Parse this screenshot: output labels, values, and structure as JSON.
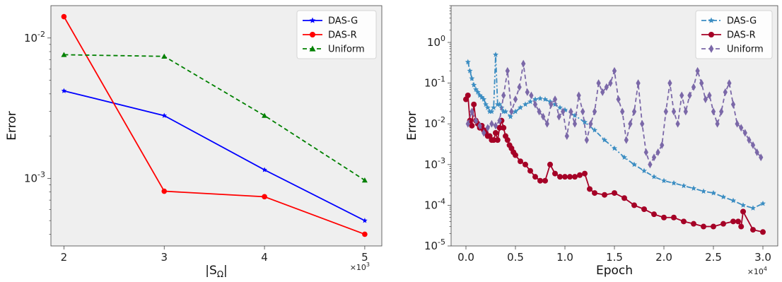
{
  "chart_data": [
    {
      "type": "line",
      "xlabel": "|S",
      "xlabel_sub": "Ω",
      "xlabel_end": "|",
      "ylabel": "Error",
      "x_multiplier": "×10",
      "x_multiplier_exp": "3",
      "yscale": "log",
      "xlim": [
        1.87,
        5.17
      ],
      "ylim": [
        0.00033,
        0.017
      ],
      "x_ticks": [
        2,
        3,
        4,
        5
      ],
      "x_tick_labels": [
        "2",
        "3",
        "4",
        "5"
      ],
      "y_ticks": [
        0.01,
        0.001
      ],
      "y_tick_labels": [
        {
          "base": "10",
          "exp": "-2"
        },
        {
          "base": "10",
          "exp": "-3"
        }
      ],
      "legend_position": "top-right",
      "grid": false,
      "series": [
        {
          "name": "DAS-G",
          "color": "#0000ff",
          "marker": "star",
          "dash": "solid",
          "x": [
            2,
            3,
            4,
            5
          ],
          "y": [
            0.0042,
            0.0028,
            0.00115,
            0.0005
          ]
        },
        {
          "name": "DAS-R",
          "color": "#ff0000",
          "marker": "circle",
          "dash": "solid",
          "x": [
            2,
            3,
            4,
            5
          ],
          "y": [
            0.0142,
            0.00081,
            0.00074,
            0.0004
          ]
        },
        {
          "name": "Uniform",
          "color": "#008000",
          "marker": "triangle",
          "dash": "dashed",
          "x": [
            2,
            3,
            4,
            5
          ],
          "y": [
            0.0076,
            0.0074,
            0.0028,
            0.00097
          ]
        }
      ]
    },
    {
      "type": "line",
      "xlabel": "Epoch",
      "ylabel": "Error",
      "x_multiplier": "×10",
      "x_multiplier_exp": "4",
      "yscale": "log",
      "xlim": [
        -0.15,
        3.15
      ],
      "ylim": [
        1e-05,
        8
      ],
      "x_ticks": [
        0.0,
        0.5,
        1.0,
        1.5,
        2.0,
        2.5,
        3.0
      ],
      "x_tick_labels": [
        "0.0",
        "0.5",
        "1.0",
        "1.5",
        "2.0",
        "2.5",
        "3.0"
      ],
      "y_ticks": [
        1,
        0.1,
        0.01,
        0.001,
        0.0001,
        1e-05
      ],
      "y_tick_labels": [
        {
          "base": "10",
          "exp": "0"
        },
        {
          "base": "10",
          "exp": "-1"
        },
        {
          "base": "10",
          "exp": "-2"
        },
        {
          "base": "10",
          "exp": "-3"
        },
        {
          "base": "10",
          "exp": "-4"
        },
        {
          "base": "10",
          "exp": "-5"
        }
      ],
      "legend_position": "top-right",
      "grid": false,
      "series": [
        {
          "name": "DAS-G",
          "color": "#3b8dc2",
          "marker": "star",
          "dash": "dashdot",
          "x": [
            0.02,
            0.04,
            0.06,
            0.08,
            0.1,
            0.12,
            0.14,
            0.16,
            0.18,
            0.2,
            0.22,
            0.24,
            0.26,
            0.28,
            0.3,
            0.32,
            0.34,
            0.36,
            0.38,
            0.4,
            0.45,
            0.5,
            0.55,
            0.6,
            0.65,
            0.7,
            0.75,
            0.8,
            0.85,
            0.9,
            0.95,
            1.0,
            1.1,
            1.2,
            1.3,
            1.4,
            1.5,
            1.6,
            1.7,
            1.8,
            1.9,
            2.0,
            2.1,
            2.2,
            2.3,
            2.4,
            2.5,
            2.6,
            2.7,
            2.8,
            2.9,
            3.0
          ],
          "y": [
            0.33,
            0.2,
            0.13,
            0.09,
            0.07,
            0.06,
            0.05,
            0.045,
            0.04,
            0.03,
            0.025,
            0.02,
            0.02,
            0.025,
            0.5,
            0.03,
            0.03,
            0.025,
            0.02,
            0.02,
            0.015,
            0.02,
            0.025,
            0.03,
            0.035,
            0.04,
            0.042,
            0.04,
            0.035,
            0.03,
            0.025,
            0.022,
            0.016,
            0.011,
            0.007,
            0.004,
            0.0025,
            0.0015,
            0.001,
            0.0007,
            0.0005,
            0.0004,
            0.00035,
            0.0003,
            0.00026,
            0.00022,
            0.0002,
            0.00016,
            0.00013,
            0.0001,
            8.5e-05,
            0.00011
          ]
        },
        {
          "name": "DAS-R",
          "color": "#a50026",
          "marker": "circle",
          "dash": "solid",
          "x": [
            0.0,
            0.02,
            0.04,
            0.06,
            0.08,
            0.1,
            0.12,
            0.14,
            0.16,
            0.18,
            0.2,
            0.22,
            0.24,
            0.26,
            0.28,
            0.3,
            0.32,
            0.34,
            0.36,
            0.38,
            0.4,
            0.42,
            0.44,
            0.46,
            0.48,
            0.5,
            0.55,
            0.6,
            0.65,
            0.7,
            0.75,
            0.8,
            0.85,
            0.9,
            0.95,
            1.0,
            1.05,
            1.1,
            1.15,
            1.2,
            1.25,
            1.3,
            1.4,
            1.5,
            1.6,
            1.7,
            1.8,
            1.9,
            2.0,
            2.1,
            2.2,
            2.3,
            2.4,
            2.5,
            2.6,
            2.7,
            2.75,
            2.78,
            2.8,
            2.9,
            3.0
          ],
          "y": [
            0.04,
            0.05,
            0.012,
            0.009,
            0.03,
            0.012,
            0.01,
            0.008,
            0.009,
            0.007,
            0.006,
            0.005,
            0.005,
            0.004,
            0.004,
            0.006,
            0.004,
            0.008,
            0.012,
            0.008,
            0.005,
            0.004,
            0.003,
            0.0025,
            0.002,
            0.0017,
            0.0012,
            0.001,
            0.0007,
            0.0005,
            0.0004,
            0.0004,
            0.001,
            0.0006,
            0.0005,
            0.0005,
            0.0005,
            0.0005,
            0.00055,
            0.0006,
            0.00025,
            0.0002,
            0.00018,
            0.0002,
            0.00015,
            0.0001,
            8e-05,
            6e-05,
            5e-05,
            5e-05,
            4e-05,
            3.5e-05,
            3e-05,
            3e-05,
            3.5e-05,
            4e-05,
            4e-05,
            3e-05,
            7e-05,
            2.5e-05,
            2.2e-05
          ]
        },
        {
          "name": "Uniform",
          "color": "#7b68a8",
          "marker": "diamond",
          "dash": "dashed",
          "x": [
            0.02,
            0.06,
            0.1,
            0.14,
            0.18,
            0.22,
            0.26,
            0.3,
            0.34,
            0.38,
            0.42,
            0.46,
            0.5,
            0.54,
            0.58,
            0.62,
            0.66,
            0.7,
            0.74,
            0.78,
            0.82,
            0.86,
            0.9,
            0.94,
            0.98,
            1.02,
            1.06,
            1.1,
            1.14,
            1.18,
            1.22,
            1.26,
            1.3,
            1.34,
            1.38,
            1.42,
            1.46,
            1.5,
            1.54,
            1.58,
            1.62,
            1.66,
            1.7,
            1.74,
            1.78,
            1.82,
            1.86,
            1.9,
            1.94,
            1.98,
            2.02,
            2.06,
            2.1,
            2.14,
            2.18,
            2.22,
            2.26,
            2.3,
            2.34,
            2.38,
            2.42,
            2.46,
            2.5,
            2.54,
            2.58,
            2.62,
            2.66,
            2.7,
            2.74,
            2.78,
            2.82,
            2.86,
            2.9,
            2.94,
            2.98
          ],
          "y": [
            0.01,
            0.02,
            0.012,
            0.009,
            0.006,
            0.008,
            0.01,
            0.009,
            0.012,
            0.05,
            0.2,
            0.02,
            0.04,
            0.08,
            0.3,
            0.06,
            0.05,
            0.03,
            0.02,
            0.015,
            0.01,
            0.03,
            0.04,
            0.015,
            0.02,
            0.005,
            0.02,
            0.01,
            0.05,
            0.02,
            0.004,
            0.01,
            0.02,
            0.1,
            0.06,
            0.08,
            0.1,
            0.2,
            0.04,
            0.02,
            0.004,
            0.01,
            0.02,
            0.1,
            0.01,
            0.002,
            0.001,
            0.0015,
            0.002,
            0.003,
            0.02,
            0.1,
            0.02,
            0.01,
            0.05,
            0.02,
            0.05,
            0.08,
            0.2,
            0.1,
            0.04,
            0.05,
            0.02,
            0.01,
            0.02,
            0.06,
            0.1,
            0.03,
            0.01,
            0.008,
            0.006,
            0.004,
            0.003,
            0.002,
            0.0015
          ]
        }
      ]
    }
  ]
}
